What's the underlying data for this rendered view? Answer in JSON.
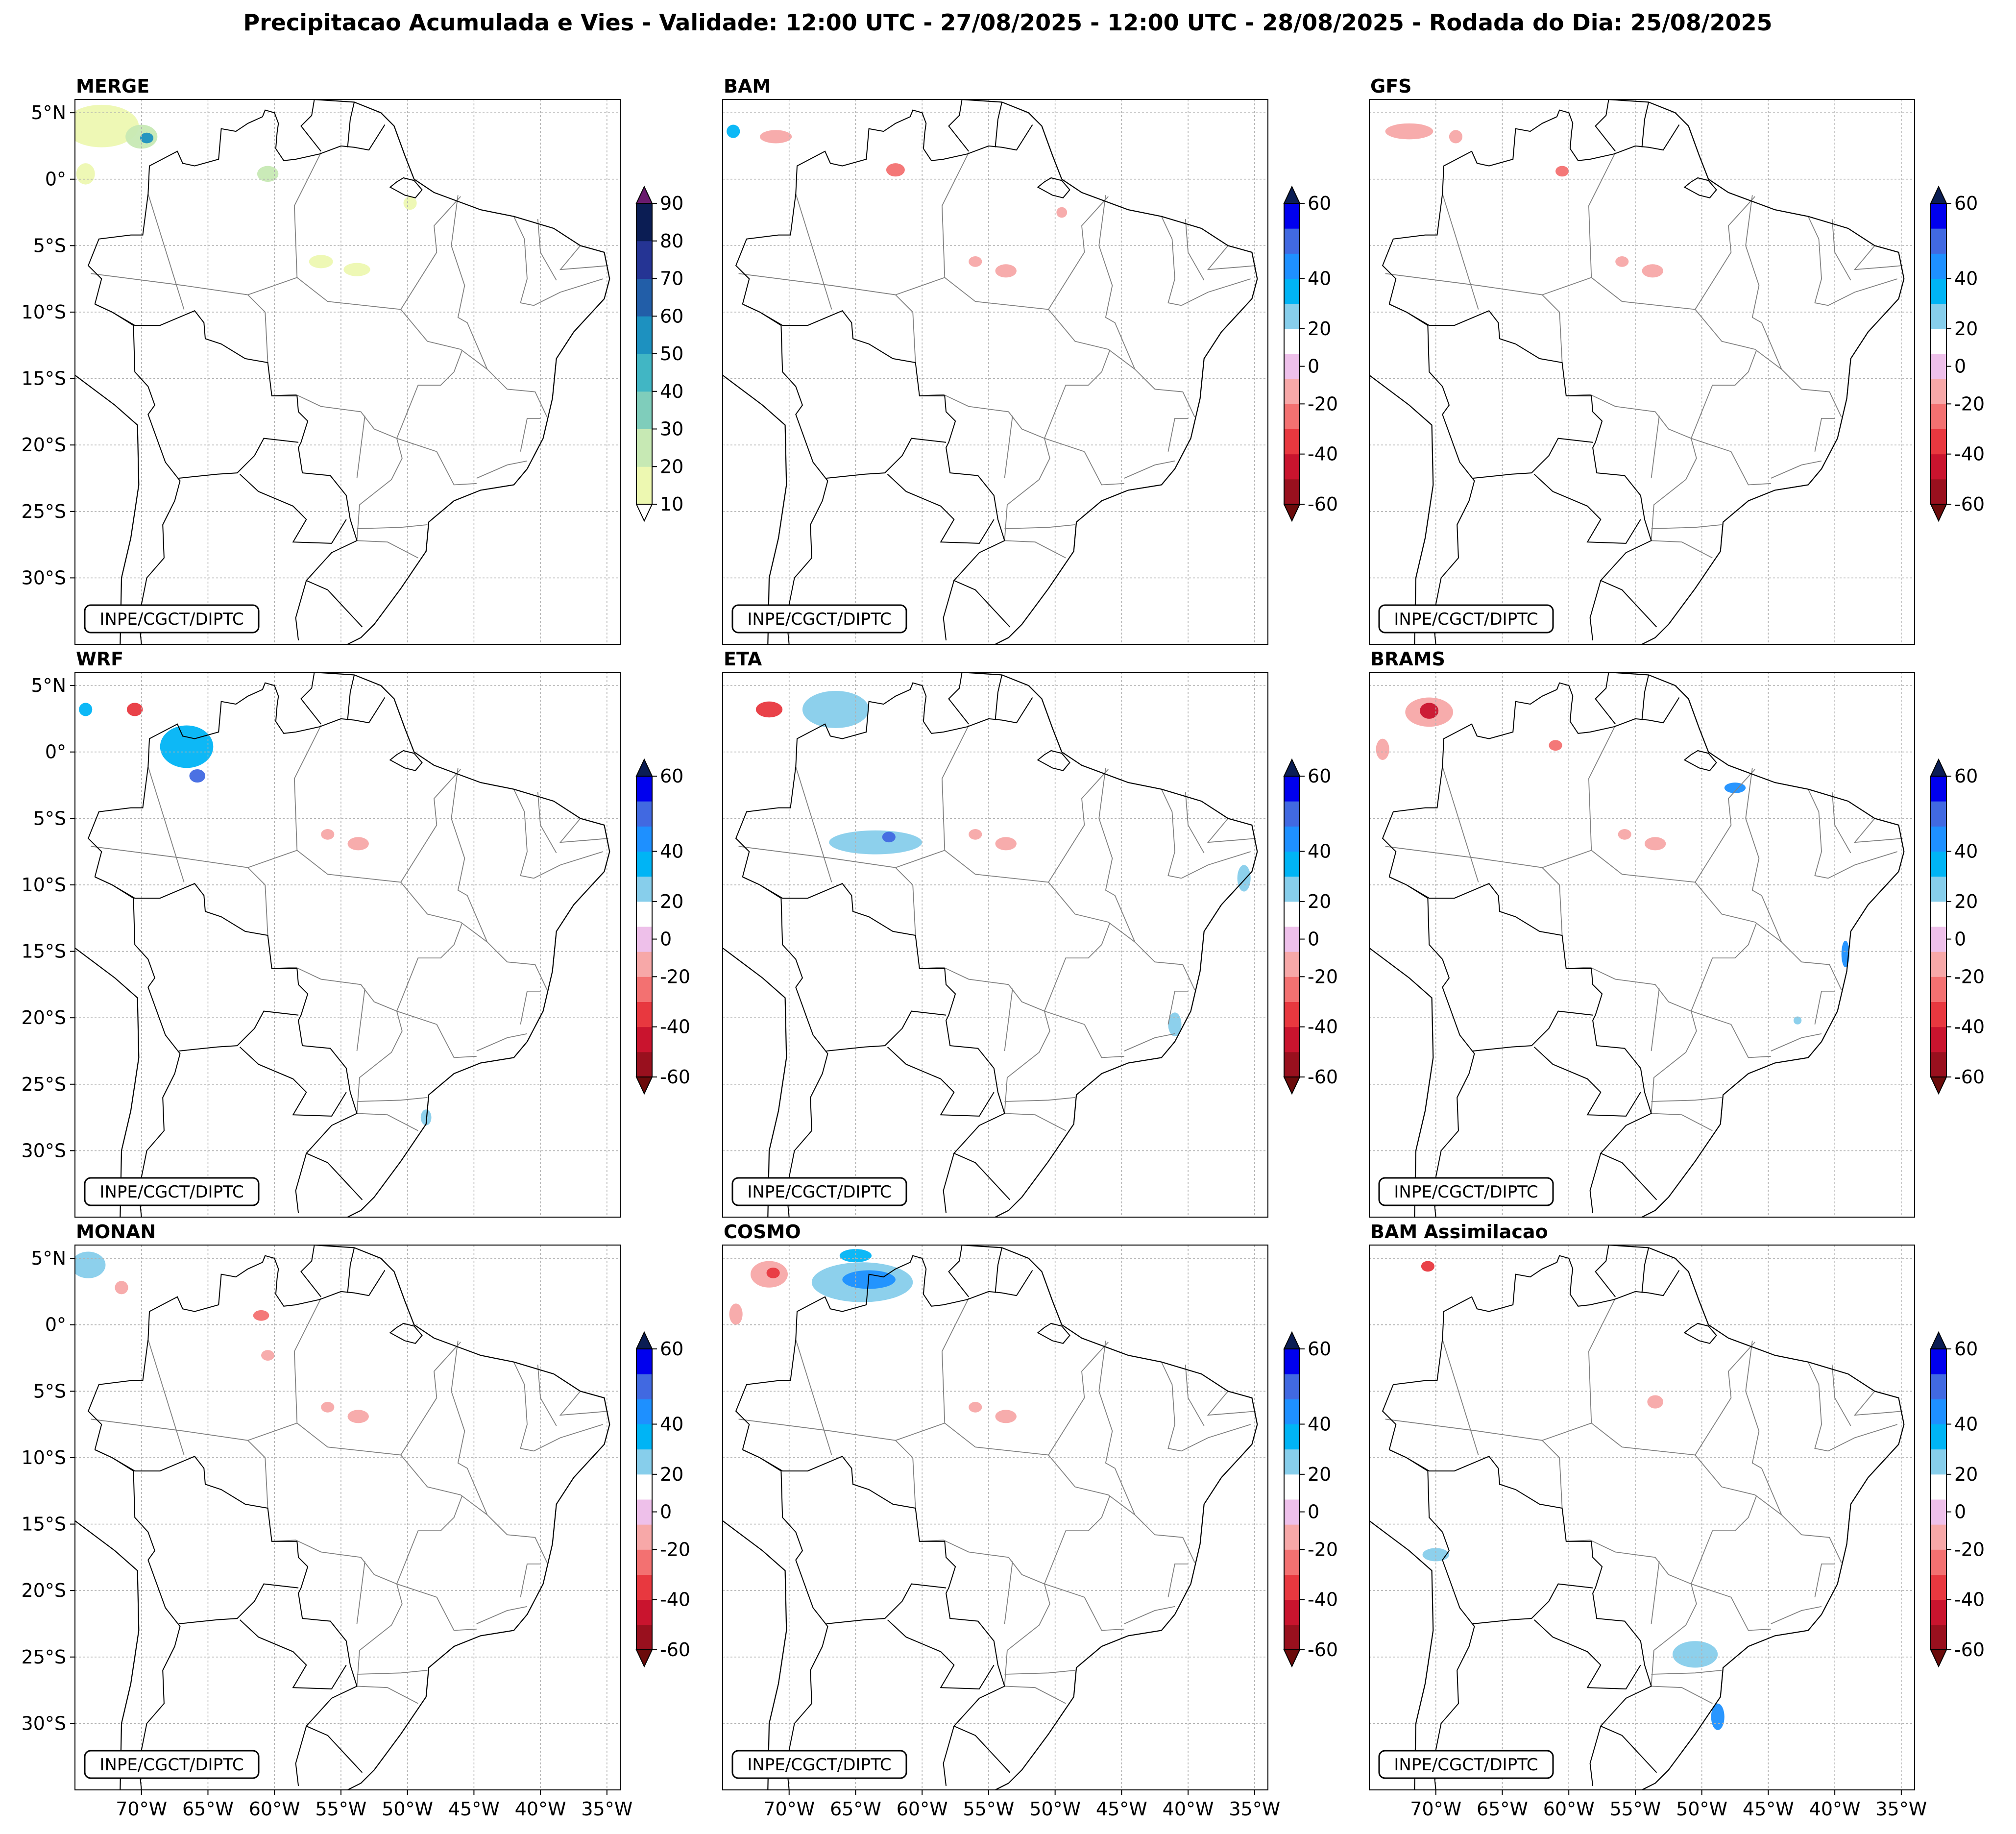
{
  "title": "Precipitacao Acumulada e Vies - Validade: 12:00 UTC - 27/08/2025 - 12:00 UTC - 28/08/2025 - Rodada do Dia: 25/08/2025",
  "watermark": "INPE/CGCT/DIPTC",
  "chart_data": {
    "type": "map-contour-grid",
    "map_extent": {
      "lon": [
        -75,
        -34
      ],
      "lat": [
        -35,
        6
      ]
    },
    "lon_ticks": [
      {
        "value": -70,
        "label": "70°W"
      },
      {
        "value": -65,
        "label": "65°W"
      },
      {
        "value": -60,
        "label": "60°W"
      },
      {
        "value": -55,
        "label": "55°W"
      },
      {
        "value": -50,
        "label": "50°W"
      },
      {
        "value": -45,
        "label": "45°W"
      },
      {
        "value": -40,
        "label": "40°W"
      },
      {
        "value": -35,
        "label": "35°W"
      }
    ],
    "lat_ticks": [
      {
        "value": 5,
        "label": "5°N"
      },
      {
        "value": 0,
        "label": "0°"
      },
      {
        "value": -5,
        "label": "5°S"
      },
      {
        "value": -10,
        "label": "10°S"
      },
      {
        "value": -15,
        "label": "15°S"
      },
      {
        "value": -20,
        "label": "20°S"
      },
      {
        "value": -25,
        "label": "25°S"
      },
      {
        "value": -30,
        "label": "30°S"
      }
    ],
    "merge_colorbar": {
      "levels": [
        10,
        20,
        30,
        40,
        50,
        60,
        70,
        80,
        90
      ],
      "tick_labels": [
        "10",
        "20",
        "30",
        "40",
        "50",
        "60",
        "70",
        "80",
        "90"
      ],
      "colors": [
        "#edf8b1",
        "#c7e9b4",
        "#7fcdbb",
        "#41b6c4",
        "#1d91c0",
        "#225ea8",
        "#253494",
        "#0b1d54"
      ],
      "over_color": "#6a1b6e",
      "under_color": "#ffffff"
    },
    "bias_colorbar": {
      "levels": [
        -60,
        -50,
        -40,
        -30,
        -20,
        -10,
        10,
        20,
        30,
        40,
        50,
        60
      ],
      "tick_labels": [
        "-60",
        "-40",
        "-20",
        "0",
        "20",
        "40",
        "60"
      ],
      "tick_values": [
        -60,
        -40,
        -20,
        0,
        20,
        40,
        60
      ],
      "colors": [
        "#99101e",
        "#c9142e",
        "#e8383f",
        "#f37171",
        "#f7a8a8",
        "#eec0ea",
        "#ffffff",
        "#87ceeb",
        "#00b4f5",
        "#1e90ff",
        "#4169e1",
        "#0000ee"
      ],
      "over_color": "#0b1d54",
      "under_color": "#6b0b0b"
    },
    "panels": [
      {
        "name": "MERGE",
        "kind": "precip",
        "areas": [
          {
            "lon": -73,
            "lat": 4,
            "rx": 2.8,
            "ry": 1.6,
            "value": 15
          },
          {
            "lon": -70,
            "lat": 3.2,
            "rx": 1.2,
            "ry": 0.9,
            "value": 28
          },
          {
            "lon": -69.6,
            "lat": 3.1,
            "rx": 0.5,
            "ry": 0.4,
            "value": 55
          },
          {
            "lon": -74.2,
            "lat": 0.4,
            "rx": 0.7,
            "ry": 0.8,
            "value": 15
          },
          {
            "lon": -60.5,
            "lat": 0.4,
            "rx": 0.8,
            "ry": 0.6,
            "value": 22
          },
          {
            "lon": -49.8,
            "lat": -1.8,
            "rx": 0.5,
            "ry": 0.5,
            "value": 15
          },
          {
            "lon": -56.5,
            "lat": -6.2,
            "rx": 0.9,
            "ry": 0.5,
            "value": 15
          },
          {
            "lon": -53.8,
            "lat": -6.8,
            "rx": 1.0,
            "ry": 0.5,
            "value": 18
          }
        ]
      },
      {
        "name": "BAM",
        "kind": "bias",
        "areas": [
          {
            "lon": -66,
            "lat": 4,
            "rx": 2.8,
            "ry": 1.2,
            "value": 15
          },
          {
            "lon": -71,
            "lat": 3.2,
            "rx": 1.2,
            "ry": 0.5,
            "value": -15
          },
          {
            "lon": -74.2,
            "lat": 3.6,
            "rx": 0.5,
            "ry": 0.5,
            "value": 35
          },
          {
            "lon": -62,
            "lat": 0.7,
            "rx": 0.7,
            "ry": 0.5,
            "value": -25
          },
          {
            "lon": -68.5,
            "lat": -3.7,
            "rx": 2.2,
            "ry": 0.5,
            "value": 15
          },
          {
            "lon": -56,
            "lat": -6.2,
            "rx": 0.5,
            "ry": 0.4,
            "value": -15
          },
          {
            "lon": -53.7,
            "lat": -6.9,
            "rx": 0.8,
            "ry": 0.5,
            "value": -15
          },
          {
            "lon": -58,
            "lat": -3.6,
            "rx": 0.7,
            "ry": 0.3,
            "value": 15
          },
          {
            "lon": -49.5,
            "lat": -2.5,
            "rx": 0.4,
            "ry": 0.4,
            "value": -15
          }
        ]
      },
      {
        "name": "GFS",
        "kind": "bias",
        "areas": [
          {
            "lon": -64,
            "lat": 4.2,
            "rx": 2.5,
            "ry": 1.4,
            "value": 15
          },
          {
            "lon": -72,
            "lat": 3.6,
            "rx": 1.8,
            "ry": 0.6,
            "value": -15
          },
          {
            "lon": -68.5,
            "lat": 3.2,
            "rx": 0.5,
            "ry": 0.5,
            "value": -15
          },
          {
            "lon": -60.5,
            "lat": 0.6,
            "rx": 0.5,
            "ry": 0.4,
            "value": -25
          },
          {
            "lon": -56,
            "lat": -6.2,
            "rx": 0.5,
            "ry": 0.4,
            "value": -15
          },
          {
            "lon": -53.7,
            "lat": -6.9,
            "rx": 0.8,
            "ry": 0.5,
            "value": -15
          },
          {
            "lon": -72.5,
            "lat": -1.5,
            "rx": 0.8,
            "ry": 0.5,
            "value": 15
          }
        ]
      },
      {
        "name": "WRF",
        "kind": "bias",
        "areas": [
          {
            "lon": -67,
            "lat": -0.2,
            "rx": 3.8,
            "ry": 2.2,
            "value": 15
          },
          {
            "lon": -66.6,
            "lat": 0.4,
            "rx": 2.0,
            "ry": 1.6,
            "value": 30
          },
          {
            "lon": -65.8,
            "lat": -1.8,
            "rx": 0.6,
            "ry": 0.5,
            "value": 55
          },
          {
            "lon": -63.3,
            "lat": -1.5,
            "rx": 1.5,
            "ry": 1.4,
            "value": 15
          },
          {
            "lon": -74.2,
            "lat": 3.2,
            "rx": 0.5,
            "ry": 0.5,
            "value": 35
          },
          {
            "lon": -70.5,
            "lat": 3.2,
            "rx": 0.6,
            "ry": 0.5,
            "value": -35
          },
          {
            "lon": -56,
            "lat": -6.2,
            "rx": 0.5,
            "ry": 0.4,
            "value": -15
          },
          {
            "lon": -53.7,
            "lat": -6.9,
            "rx": 0.8,
            "ry": 0.5,
            "value": -15
          },
          {
            "lon": -49,
            "lat": -25.5,
            "rx": 1.0,
            "ry": 0.5,
            "value": 15
          },
          {
            "lon": -48.6,
            "lat": -27.5,
            "rx": 0.4,
            "ry": 0.6,
            "value": 25
          }
        ]
      },
      {
        "name": "ETA",
        "kind": "bias",
        "areas": [
          {
            "lon": -68,
            "lat": -5,
            "rx": 4.2,
            "ry": 1.0,
            "value": 15
          },
          {
            "lon": -63.5,
            "lat": -6.8,
            "rx": 3.5,
            "ry": 0.9,
            "value": 25
          },
          {
            "lon": -62.5,
            "lat": -6.4,
            "rx": 0.5,
            "ry": 0.4,
            "value": 55
          },
          {
            "lon": -66.5,
            "lat": 3.2,
            "rx": 2.5,
            "ry": 1.4,
            "value": 25
          },
          {
            "lon": -71.5,
            "lat": 3.2,
            "rx": 1.0,
            "ry": 0.6,
            "value": -35
          },
          {
            "lon": -70.2,
            "lat": -1.5,
            "rx": 1.3,
            "ry": 0.7,
            "value": 15
          },
          {
            "lon": -56,
            "lat": -6.2,
            "rx": 0.5,
            "ry": 0.4,
            "value": -15
          },
          {
            "lon": -53.7,
            "lat": -6.9,
            "rx": 0.8,
            "ry": 0.5,
            "value": -15
          },
          {
            "lon": -35.8,
            "lat": -9.5,
            "rx": 0.5,
            "ry": 1.0,
            "value": 25
          },
          {
            "lon": -41,
            "lat": -20.5,
            "rx": 0.5,
            "ry": 0.9,
            "value": 25
          }
        ]
      },
      {
        "name": "BRAMS",
        "kind": "bias",
        "areas": [
          {
            "lon": -70.5,
            "lat": 3.0,
            "rx": 1.8,
            "ry": 1.1,
            "value": -15
          },
          {
            "lon": -70.5,
            "lat": 3.1,
            "rx": 0.7,
            "ry": 0.6,
            "value": -45
          },
          {
            "lon": -74,
            "lat": 0.2,
            "rx": 0.5,
            "ry": 0.8,
            "value": -15
          },
          {
            "lon": -61,
            "lat": 0.5,
            "rx": 0.5,
            "ry": 0.4,
            "value": -25
          },
          {
            "lon": -47.5,
            "lat": -2.7,
            "rx": 0.8,
            "ry": 0.4,
            "value": 40
          },
          {
            "lon": -55.8,
            "lat": -6.2,
            "rx": 0.5,
            "ry": 0.4,
            "value": -15
          },
          {
            "lon": -53.5,
            "lat": -6.9,
            "rx": 0.8,
            "ry": 0.5,
            "value": -15
          },
          {
            "lon": -39.2,
            "lat": -15.2,
            "rx": 0.3,
            "ry": 1.0,
            "value": 45
          },
          {
            "lon": -42.8,
            "lat": -20.2,
            "rx": 0.3,
            "ry": 0.3,
            "value": 25
          }
        ]
      },
      {
        "name": "MONAN",
        "kind": "bias",
        "areas": [
          {
            "lon": -74,
            "lat": 4.5,
            "rx": 1.3,
            "ry": 1.0,
            "value": 25
          },
          {
            "lon": -69.5,
            "lat": 3.2,
            "rx": 0.6,
            "ry": 0.7,
            "value": 15
          },
          {
            "lon": -71.5,
            "lat": 2.8,
            "rx": 0.5,
            "ry": 0.5,
            "value": -15
          },
          {
            "lon": -65.8,
            "lat": 3.2,
            "rx": 0.4,
            "ry": 0.4,
            "value": 15
          },
          {
            "lon": -61,
            "lat": 0.7,
            "rx": 0.6,
            "ry": 0.4,
            "value": -25
          },
          {
            "lon": -56,
            "lat": -6.2,
            "rx": 0.5,
            "ry": 0.4,
            "value": -15
          },
          {
            "lon": -53.7,
            "lat": -6.9,
            "rx": 0.8,
            "ry": 0.5,
            "value": -15
          },
          {
            "lon": -60.5,
            "lat": -2.3,
            "rx": 0.5,
            "ry": 0.4,
            "value": -15
          }
        ]
      },
      {
        "name": "COSMO",
        "kind": "bias",
        "areas": [
          {
            "lon": -64.5,
            "lat": 3.2,
            "rx": 3.8,
            "ry": 1.5,
            "value": 25
          },
          {
            "lon": -64,
            "lat": 3.4,
            "rx": 2.0,
            "ry": 0.7,
            "value": 45
          },
          {
            "lon": -65,
            "lat": 5.2,
            "rx": 1.2,
            "ry": 0.5,
            "value": 35
          },
          {
            "lon": -71.5,
            "lat": 3.8,
            "rx": 1.4,
            "ry": 1.0,
            "value": -15
          },
          {
            "lon": -71.2,
            "lat": 3.9,
            "rx": 0.5,
            "ry": 0.4,
            "value": -40
          },
          {
            "lon": -74,
            "lat": 0.8,
            "rx": 0.5,
            "ry": 0.8,
            "value": -15
          },
          {
            "lon": -56,
            "lat": -6.2,
            "rx": 0.5,
            "ry": 0.4,
            "value": -15
          },
          {
            "lon": -53.7,
            "lat": -6.9,
            "rx": 0.8,
            "ry": 0.5,
            "value": -15
          }
        ]
      },
      {
        "name": "BAM Assimilacao",
        "kind": "bias",
        "areas": [
          {
            "lon": -70,
            "lat": 2.5,
            "rx": 4.0,
            "ry": 2.2,
            "value": 15
          },
          {
            "lon": -74,
            "lat": -0.8,
            "rx": 1.3,
            "ry": 1.3,
            "value": 15
          },
          {
            "lon": -60.5,
            "lat": 4,
            "rx": 1.0,
            "ry": 1.0,
            "value": 15
          },
          {
            "lon": -70.6,
            "lat": 4.4,
            "rx": 0.5,
            "ry": 0.4,
            "value": -35
          },
          {
            "lon": -67.5,
            "lat": -18.5,
            "rx": 3.0,
            "ry": 1.2,
            "value": 15
          },
          {
            "lon": -70,
            "lat": -17.3,
            "rx": 1.0,
            "ry": 0.5,
            "value": 25
          },
          {
            "lon": -56,
            "lat": -21.5,
            "rx": 4.0,
            "ry": 1.0,
            "value": 15
          },
          {
            "lon": -50.5,
            "lat": -24.5,
            "rx": 3.5,
            "ry": 1.3,
            "value": 15
          },
          {
            "lon": -50.5,
            "lat": -24.8,
            "rx": 1.7,
            "ry": 1.0,
            "value": 25
          },
          {
            "lon": -49.5,
            "lat": -29.3,
            "rx": 2.0,
            "ry": 1.3,
            "value": 15
          },
          {
            "lon": -48.8,
            "lat": -29.5,
            "rx": 0.5,
            "ry": 1.0,
            "value": 40
          },
          {
            "lon": -53.5,
            "lat": -5.8,
            "rx": 0.6,
            "ry": 0.5,
            "value": -15
          },
          {
            "lon": -47.5,
            "lat": -0.8,
            "rx": 1.5,
            "ry": 0.8,
            "value": 15
          },
          {
            "lon": -43,
            "lat": 4.5,
            "rx": 1.2,
            "ry": 0.8,
            "value": 15
          }
        ]
      }
    ]
  }
}
